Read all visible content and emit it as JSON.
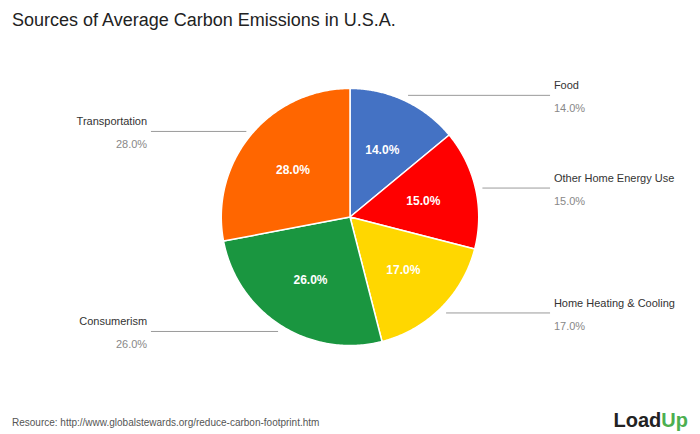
{
  "chart_data": {
    "type": "pie",
    "title": "Sources of Average Carbon Emissions in U.S.A.",
    "categories": [
      "Food",
      "Other Home Energy Use",
      "Home Heating & Cooling",
      "Consumerism",
      "Transportation"
    ],
    "values": [
      14.0,
      15.0,
      17.0,
      26.0,
      28.0
    ],
    "value_labels": [
      "14.0%",
      "15.0%",
      "17.0%",
      "26.0%",
      "28.0%"
    ],
    "colors": [
      "#4472C4",
      "#FF0000",
      "#FFD700",
      "#1A9640",
      "#FF6600"
    ],
    "data_labels": true,
    "annotations": [
      "Resource: http://www.globalstewards.org/reduce-carbon-footprint.htm",
      "Load",
      "Up"
    ]
  }
}
